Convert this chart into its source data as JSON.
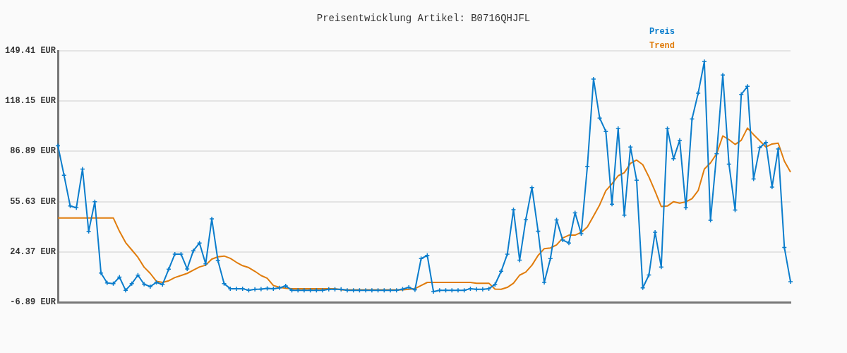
{
  "chart_data": {
    "type": "line",
    "title": "Preisentwicklung Artikel: B0716QHJFL",
    "categories": [
      null,
      null,
      null,
      null,
      null,
      null,
      null,
      null,
      null,
      null,
      null,
      null,
      null,
      null,
      null,
      null,
      null,
      null,
      null,
      null,
      null,
      null,
      null,
      null,
      null,
      null,
      null,
      null,
      null,
      null,
      null,
      null,
      null,
      null,
      null,
      null,
      null,
      null,
      null,
      null,
      null,
      null,
      null,
      null,
      null,
      null,
      null,
      null,
      null,
      null,
      null,
      null,
      null,
      null,
      null,
      null,
      null,
      null,
      null,
      null,
      null,
      null,
      null,
      null,
      null,
      null,
      null,
      null,
      null,
      null,
      null,
      null,
      null,
      null,
      null,
      null,
      null,
      null,
      null,
      null,
      null,
      null,
      null,
      null,
      null,
      null,
      null,
      null,
      null,
      null,
      null,
      null,
      null,
      null,
      null,
      null,
      null,
      null,
      null,
      null,
      null,
      null,
      null,
      null,
      null,
      null,
      null,
      null,
      null,
      null,
      null,
      null,
      null,
      null,
      null,
      null,
      null,
      null,
      null,
      null
    ],
    "series": [
      {
        "name": "Preis",
        "color": "#0b7dcc",
        "marker": "cross",
        "values": [
          90.4,
          72.0,
          52.9,
          51.8,
          75.9,
          37.1,
          55.6,
          11.2,
          5.1,
          4.6,
          8.7,
          0.5,
          4.6,
          9.9,
          4.3,
          2.8,
          5.4,
          4.1,
          13.6,
          23.0,
          23.0,
          13.8,
          25.1,
          29.9,
          16.9,
          44.9,
          18.9,
          4.6,
          1.5,
          1.5,
          1.5,
          0.5,
          1.1,
          1.2,
          1.7,
          1.5,
          2.0,
          3.2,
          0.5,
          0.5,
          0.5,
          0.5,
          0.5,
          0.5,
          1.1,
          1.1,
          1.1,
          0.5,
          0.5,
          0.5,
          0.5,
          0.5,
          0.5,
          0.5,
          0.5,
          0.5,
          1.2,
          2.3,
          0.8,
          20.2,
          22.2,
          -0.3,
          0.5,
          0.5,
          0.5,
          0.5,
          0.5,
          1.5,
          1.1,
          1.1,
          1.5,
          4.1,
          12.3,
          23.0,
          50.6,
          19.2,
          44.4,
          64.4,
          37.2,
          5.4,
          20.2,
          44.3,
          31.7,
          29.9,
          48.7,
          35.7,
          77.5,
          131.9,
          107.6,
          99.3,
          54.0,
          101.1,
          47.2,
          89.6,
          69.0,
          2.0,
          10.0,
          36.6,
          15.0,
          101.0,
          82.3,
          93.8,
          51.8,
          107.0,
          123.1,
          142.7,
          44.0,
          85.4,
          134.4,
          78.9,
          50.4,
          122.3,
          127.3,
          69.7,
          89.2,
          92.4,
          64.7,
          88.4,
          27.1,
          5.8
        ]
      },
      {
        "name": "Trend",
        "color": "#e07c0c",
        "marker": "none",
        "values": [
          45.5,
          45.5,
          45.5,
          45.5,
          45.5,
          45.5,
          45.5,
          45.5,
          45.5,
          45.5,
          37.2,
          30.2,
          25.6,
          21.0,
          14.9,
          11.0,
          6.1,
          5.4,
          6.4,
          8.4,
          9.7,
          11.0,
          13.0,
          15.0,
          16.1,
          19.9,
          21.3,
          21.8,
          20.4,
          17.9,
          15.8,
          14.6,
          12.3,
          9.7,
          8.0,
          3.5,
          2.3,
          1.8,
          1.5,
          1.5,
          1.5,
          1.5,
          1.5,
          1.5,
          1.5,
          1.5,
          0.8,
          0.8,
          0.8,
          0.8,
          0.8,
          0.8,
          0.8,
          0.8,
          0.8,
          0.8,
          0.8,
          1.1,
          1.5,
          3.5,
          5.4,
          5.4,
          5.4,
          5.4,
          5.4,
          5.4,
          5.4,
          5.4,
          4.9,
          4.9,
          4.9,
          1.2,
          1.1,
          2.3,
          4.9,
          9.9,
          11.8,
          16.1,
          22.2,
          26.4,
          26.8,
          28.7,
          33.0,
          34.8,
          34.8,
          36.5,
          39.9,
          46.7,
          53.6,
          62.4,
          66.7,
          71.7,
          73.6,
          79.4,
          81.5,
          78.6,
          71.0,
          62.1,
          52.6,
          52.9,
          55.6,
          54.7,
          55.5,
          57.5,
          62.5,
          75.9,
          79.7,
          85.4,
          96.5,
          94.2,
          91.2,
          93.8,
          101.4,
          97.3,
          93.5,
          89.6,
          91.5,
          92.0,
          80.8,
          74.0
        ]
      }
    ],
    "ylim": [
      -6.89,
      149.41
    ],
    "yticks": [
      {
        "value": -6.89,
        "label": "-6.89 EUR"
      },
      {
        "value": 24.37,
        "label": "24.37 EUR"
      },
      {
        "value": 55.63,
        "label": "55.63 EUR"
      },
      {
        "value": 86.89,
        "label": "86.89 EUR"
      },
      {
        "value": 118.15,
        "label": "118.15 EUR"
      },
      {
        "value": 149.41,
        "label": "149.41 EUR"
      }
    ],
    "grid": "y",
    "legend": "top right",
    "tick_labels": "y"
  }
}
